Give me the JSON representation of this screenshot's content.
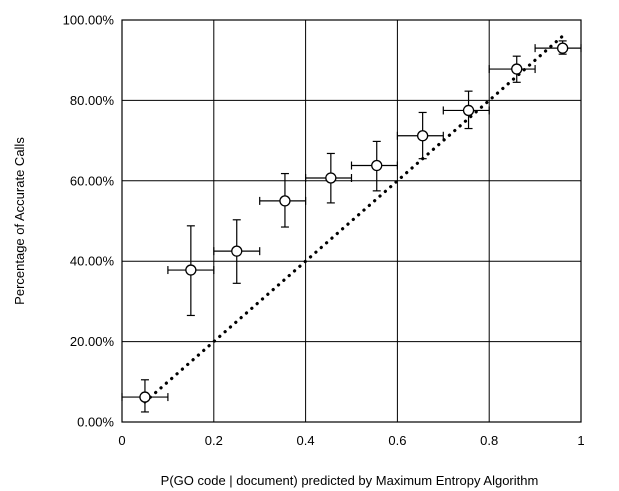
{
  "chart_data": {
    "type": "scatter",
    "title": "",
    "xlabel": "P(GO code | document) predicted by Maximum Entropy Algorithm",
    "ylabel": "Percentage of Accurate Calls",
    "xlim": [
      0,
      1
    ],
    "ylim": [
      0,
      100
    ],
    "x_ticks": [
      "0",
      "0.2",
      "0.4",
      "0.6",
      "0.8",
      "1"
    ],
    "y_ticks": [
      "0.00%",
      "20.00%",
      "40.00%",
      "60.00%",
      "80.00%",
      "100.00%"
    ],
    "grid": true,
    "legend": "none",
    "series": [
      {
        "marker": "open-circle",
        "color": "#000000",
        "points": [
          {
            "x": 0.05,
            "y": 6.2,
            "xerr": [
              0.0,
              0.1
            ],
            "yerr": [
              2.5,
              10.5
            ]
          },
          {
            "x": 0.15,
            "y": 37.8,
            "xerr": [
              0.1,
              0.2
            ],
            "yerr": [
              26.5,
              48.8
            ]
          },
          {
            "x": 0.25,
            "y": 42.5,
            "xerr": [
              0.2,
              0.3
            ],
            "yerr": [
              34.5,
              50.3
            ]
          },
          {
            "x": 0.355,
            "y": 55.0,
            "xerr": [
              0.3,
              0.4
            ],
            "yerr": [
              48.5,
              61.8
            ]
          },
          {
            "x": 0.455,
            "y": 60.7,
            "xerr": [
              0.4,
              0.5
            ],
            "yerr": [
              54.5,
              66.8
            ]
          },
          {
            "x": 0.555,
            "y": 63.8,
            "xerr": [
              0.5,
              0.6
            ],
            "yerr": [
              57.5,
              69.8
            ]
          },
          {
            "x": 0.655,
            "y": 71.2,
            "xerr": [
              0.6,
              0.7
            ],
            "yerr": [
              65.5,
              77.0
            ]
          },
          {
            "x": 0.755,
            "y": 77.5,
            "xerr": [
              0.7,
              0.8
            ],
            "yerr": [
              73.0,
              82.3
            ]
          },
          {
            "x": 0.86,
            "y": 87.8,
            "xerr": [
              0.8,
              0.9
            ],
            "yerr": [
              84.5,
              91.0
            ]
          },
          {
            "x": 0.96,
            "y": 93.0,
            "xerr": [
              0.9,
              1.0
            ],
            "yerr": [
              91.5,
              94.8
            ]
          }
        ]
      },
      {
        "style": "dotted-line",
        "color": "#000000",
        "points": [
          {
            "x": 0.05,
            "y": 5.0
          },
          {
            "x": 0.96,
            "y": 96.0
          }
        ]
      }
    ]
  }
}
